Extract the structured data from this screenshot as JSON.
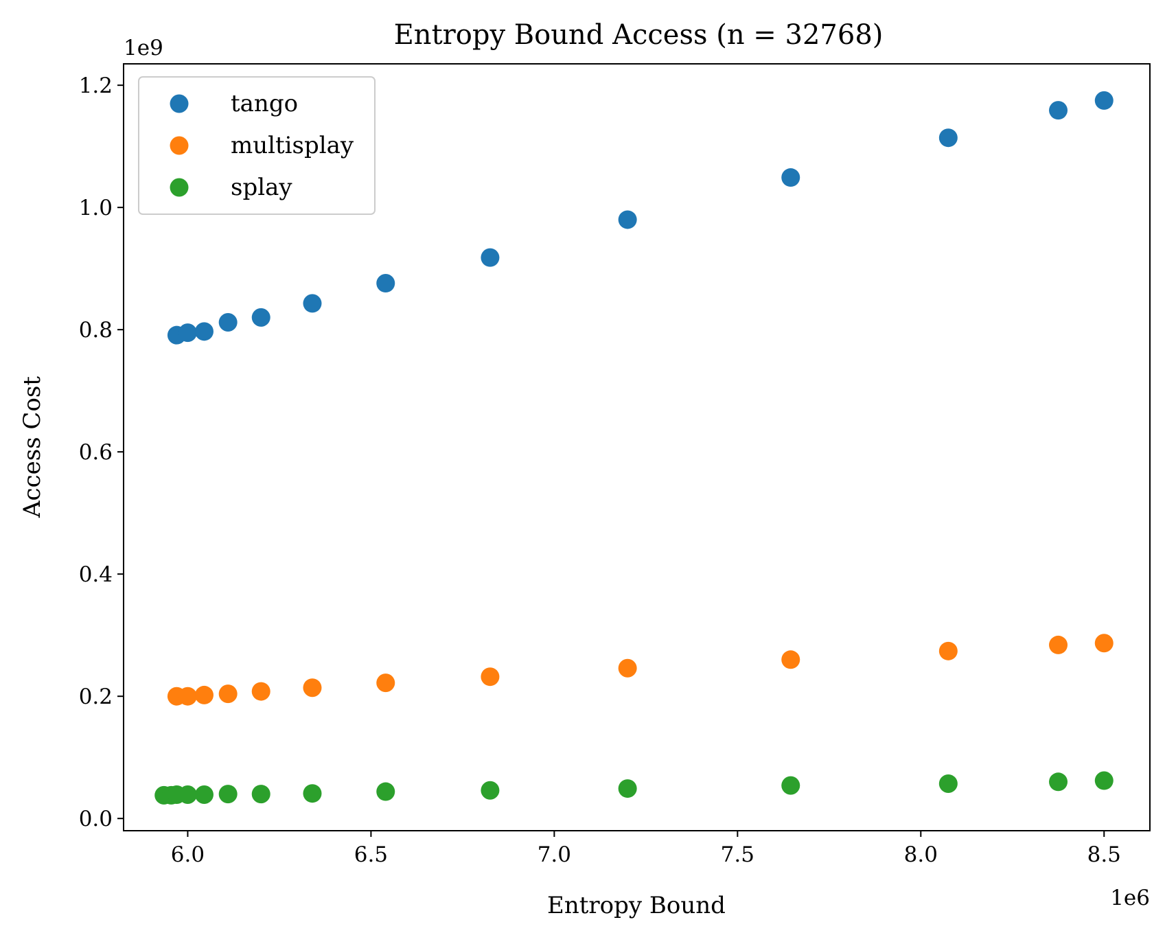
{
  "chart_data": {
    "type": "scatter",
    "title": "Entropy Bound Access (n = 32768)",
    "xlabel": "Entropy Bound",
    "ylabel": "Access Cost",
    "x_offset_label": "1e6",
    "y_offset_label": "1e9",
    "xlim": [
      5.825,
      8.625
    ],
    "ylim": [
      -0.02,
      1.235
    ],
    "x_ticks": [
      6.0,
      6.5,
      7.0,
      7.5,
      8.0,
      8.5
    ],
    "x_tick_labels": [
      "6.0",
      "6.5",
      "7.0",
      "7.5",
      "8.0",
      "8.5"
    ],
    "y_ticks": [
      0.0,
      0.2,
      0.4,
      0.6,
      0.8,
      1.0,
      1.2
    ],
    "y_tick_labels": [
      "0.0",
      "0.2",
      "0.4",
      "0.6",
      "0.8",
      "1.0",
      "1.2"
    ],
    "grid": false,
    "legend_position": "top-left",
    "series": [
      {
        "name": "tango",
        "color": "#1f77b4",
        "points": [
          [
            5.97,
            0.791
          ],
          [
            6.0,
            0.795
          ],
          [
            6.045,
            0.797
          ],
          [
            6.11,
            0.812
          ],
          [
            6.2,
            0.82
          ],
          [
            6.34,
            0.843
          ],
          [
            6.54,
            0.876
          ],
          [
            6.825,
            0.918
          ],
          [
            7.2,
            0.98
          ],
          [
            7.645,
            1.049
          ],
          [
            8.075,
            1.114
          ],
          [
            8.375,
            1.159
          ],
          [
            8.5,
            1.175
          ]
        ]
      },
      {
        "name": "multisplay",
        "color": "#ff7f0e",
        "points": [
          [
            5.97,
            0.2
          ],
          [
            6.0,
            0.2
          ],
          [
            6.045,
            0.202
          ],
          [
            6.11,
            0.204
          ],
          [
            6.2,
            0.208
          ],
          [
            6.34,
            0.214
          ],
          [
            6.54,
            0.222
          ],
          [
            6.825,
            0.232
          ],
          [
            7.2,
            0.246
          ],
          [
            7.645,
            0.26
          ],
          [
            8.075,
            0.274
          ],
          [
            8.375,
            0.284
          ],
          [
            8.5,
            0.287
          ]
        ]
      },
      {
        "name": "splay",
        "color": "#2ca02c",
        "points": [
          [
            5.935,
            0.038
          ],
          [
            5.955,
            0.038
          ],
          [
            5.97,
            0.039
          ],
          [
            6.0,
            0.039
          ],
          [
            6.045,
            0.039
          ],
          [
            6.11,
            0.04
          ],
          [
            6.2,
            0.04
          ],
          [
            6.34,
            0.041
          ],
          [
            6.54,
            0.044
          ],
          [
            6.825,
            0.046
          ],
          [
            7.2,
            0.049
          ],
          [
            7.645,
            0.054
          ],
          [
            8.075,
            0.057
          ],
          [
            8.375,
            0.06
          ],
          [
            8.5,
            0.062
          ]
        ]
      }
    ]
  }
}
